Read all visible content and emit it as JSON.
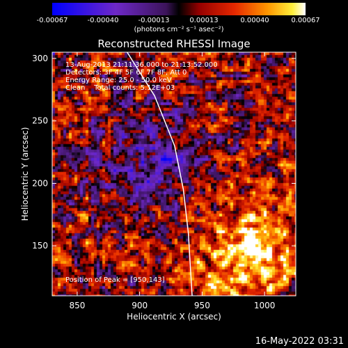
{
  "chart_data": {
    "type": "heatmap",
    "title": "Reconstructed RHESSI Image",
    "xlabel": "Heliocentric X (arcsec)",
    "ylabel": "Heliocentric Y (arcsec)",
    "xlim": [
      830,
      1025
    ],
    "ylim": [
      110,
      305
    ],
    "x_ticks": [
      850,
      900,
      950,
      1000
    ],
    "y_ticks": [
      150,
      200,
      250,
      300
    ],
    "colorbar": {
      "ticks": [
        "-0.00067",
        "-0.00040",
        "-0.00013",
        "0.00013",
        "0.00040",
        "0.00067"
      ],
      "range": [
        -0.00067,
        0.00067
      ],
      "unit_label": "(photons cm⁻² s⁻¹ asec⁻²)"
    },
    "info_lines": [
      "13-Aug-2013 21:11:36.000 to 21:13:52.000",
      "Detectors: 3F 4F 5F 6F 7F 8F, Att 0",
      "Energy Range: 25.0 - 50.0 keV",
      "Clean    Total counts: 5.12E+03"
    ],
    "peak_label": "Position of Peak = [950,143]",
    "peak": [
      950,
      143
    ],
    "limb_curve": [
      [
        890,
        305
      ],
      [
        912,
        270
      ],
      [
        928,
        230
      ],
      [
        935,
        195
      ],
      [
        939,
        160
      ],
      [
        942,
        110
      ]
    ]
  },
  "footer": {
    "timestamp": "16-May-2022 03:31"
  },
  "colors": {
    "background": "#000000",
    "foreground": "#ffffff"
  }
}
